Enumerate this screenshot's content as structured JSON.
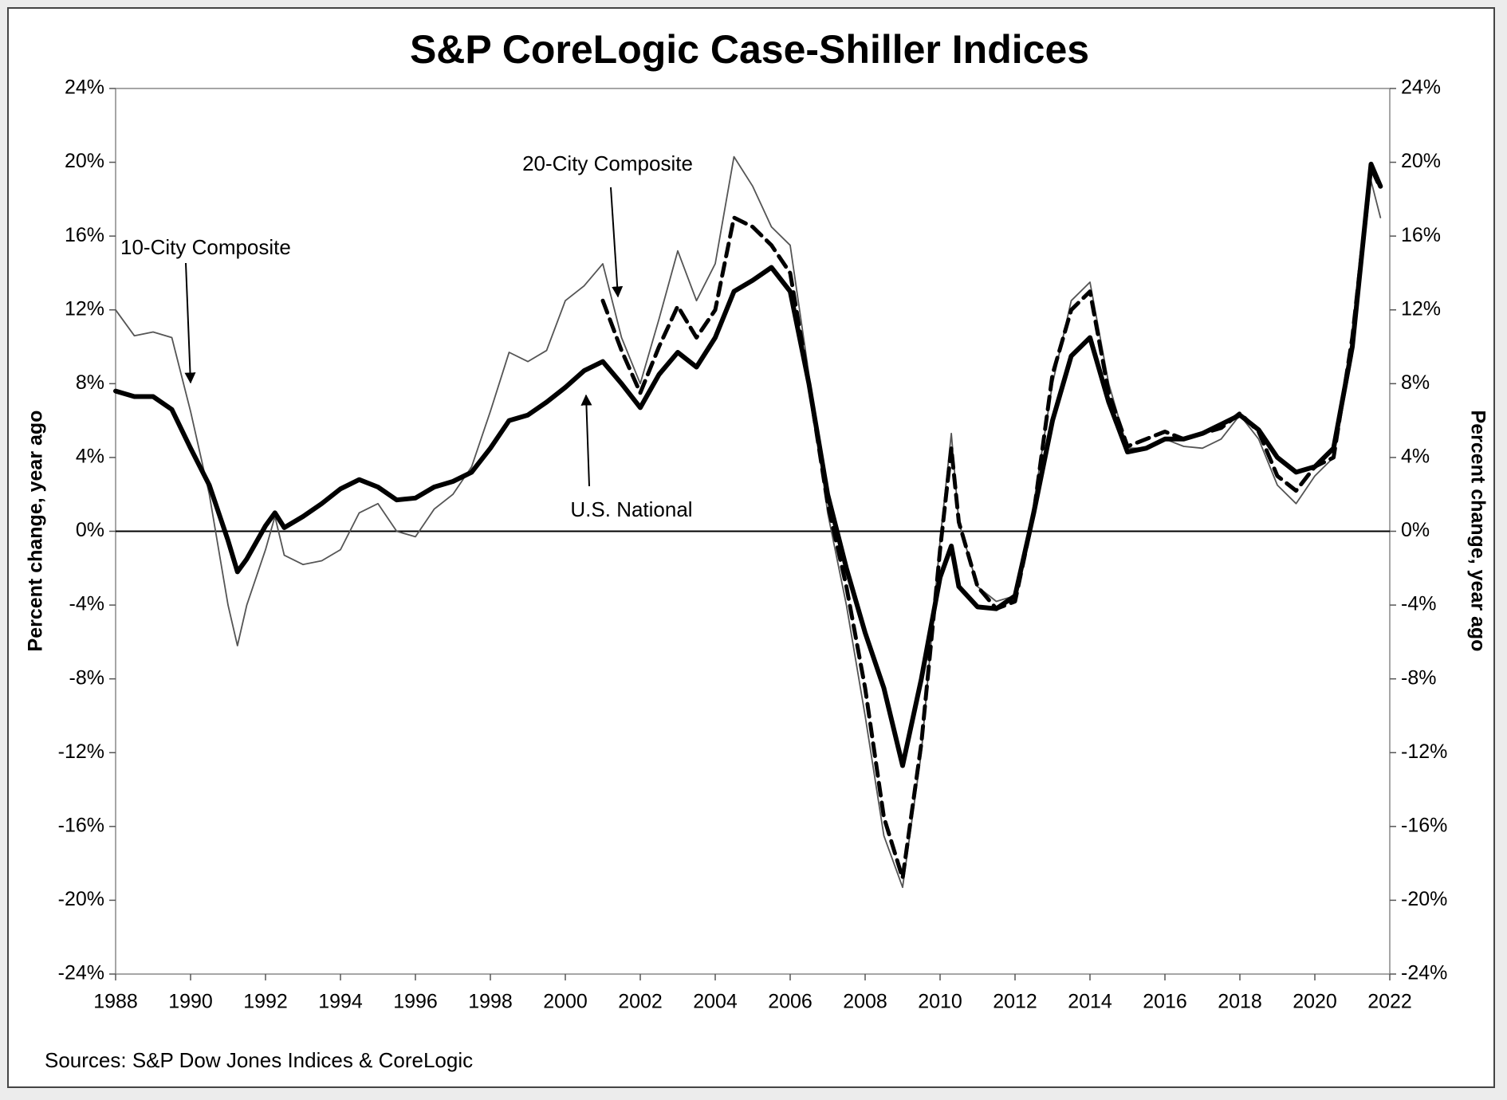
{
  "chart_data": {
    "type": "line",
    "title": "S&P CoreLogic Case-Shiller Indices",
    "y_label": "Percent change, year ago",
    "y2_label": "Percent change, year ago",
    "source": "Sources: S&P Dow Jones Indices & CoreLogic",
    "x": [
      1988,
      1988.5,
      1989,
      1989.5,
      1990,
      1990.5,
      1991,
      1991.25,
      1991.5,
      1992,
      1992.25,
      1992.5,
      1993,
      1993.5,
      1994,
      1994.5,
      1995,
      1995.5,
      1996,
      1996.5,
      1997,
      1997.5,
      1998,
      1998.5,
      1999,
      1999.5,
      2000,
      2000.5,
      2001,
      2001.5,
      2002,
      2002.5,
      2003,
      2003.5,
      2004,
      2004.5,
      2005,
      2005.5,
      2006,
      2006.5,
      2007,
      2007.5,
      2008,
      2008.5,
      2009,
      2009.5,
      2010,
      2010.3,
      2010.5,
      2011,
      2011.5,
      2012,
      2012.5,
      2013,
      2013.5,
      2014,
      2014.5,
      2015,
      2015.5,
      2016,
      2016.5,
      2017,
      2017.5,
      2018,
      2018.5,
      2019,
      2019.5,
      2020,
      2020.5,
      2021,
      2021.5,
      2021.75
    ],
    "series": [
      {
        "name": "10-City Composite",
        "color": "#555555",
        "values": [
          12.0,
          10.6,
          10.8,
          10.5,
          6.5,
          2.0,
          -4.0,
          -6.2,
          -4.0,
          -1.0,
          0.8,
          -1.3,
          -1.8,
          -1.6,
          -1.0,
          1.0,
          1.5,
          0.0,
          -0.3,
          1.2,
          2.0,
          3.5,
          6.5,
          9.7,
          9.2,
          9.8,
          12.5,
          13.3,
          14.5,
          10.5,
          8.0,
          11.5,
          15.2,
          12.5,
          14.5,
          20.3,
          18.7,
          16.5,
          15.5,
          8.5,
          1.0,
          -4.0,
          -10.0,
          -16.5,
          -19.3,
          -12.0,
          -0.5,
          5.3,
          0.5,
          -3.0,
          -3.8,
          -3.5,
          1.5,
          8.0,
          12.5,
          13.5,
          8.0,
          4.5,
          4.5,
          5.0,
          4.6,
          4.5,
          5.0,
          6.3,
          5.0,
          2.5,
          1.5,
          3.0,
          4.0,
          9.5,
          19.0,
          17.0
        ]
      },
      {
        "name": "20-City Composite",
        "color": "#000000",
        "values": [
          null,
          null,
          null,
          null,
          null,
          null,
          null,
          null,
          null,
          null,
          null,
          null,
          null,
          null,
          null,
          null,
          null,
          null,
          null,
          null,
          null,
          null,
          null,
          null,
          null,
          null,
          null,
          null,
          12.5,
          9.8,
          7.5,
          10.0,
          12.2,
          10.5,
          12.0,
          17.0,
          16.5,
          15.5,
          14.0,
          8.0,
          1.5,
          -3.0,
          -8.5,
          -15.5,
          -18.8,
          -11.5,
          -1.0,
          4.5,
          0.5,
          -3.0,
          -4.2,
          -3.8,
          1.0,
          8.5,
          12.0,
          13.0,
          7.5,
          4.6,
          5.0,
          5.4,
          5.0,
          5.3,
          5.6,
          6.4,
          5.4,
          3.0,
          2.2,
          3.5,
          4.0,
          10.5,
          19.7,
          18.6
        ]
      },
      {
        "name": "U.S. National",
        "color": "#000000",
        "values": [
          7.6,
          7.3,
          7.3,
          6.6,
          4.5,
          2.5,
          -0.5,
          -2.2,
          -1.5,
          0.3,
          1.0,
          0.2,
          0.8,
          1.5,
          2.3,
          2.8,
          2.4,
          1.7,
          1.8,
          2.4,
          2.7,
          3.2,
          4.5,
          6.0,
          6.3,
          7.0,
          7.8,
          8.7,
          9.2,
          8.0,
          6.7,
          8.5,
          9.7,
          8.9,
          10.5,
          13.0,
          13.6,
          14.3,
          13.0,
          8.0,
          2.0,
          -2.0,
          -5.5,
          -8.5,
          -12.7,
          -8.0,
          -2.5,
          -0.8,
          -3.0,
          -4.1,
          -4.2,
          -3.5,
          1.0,
          6.0,
          9.5,
          10.5,
          7.0,
          4.3,
          4.5,
          5.0,
          5.0,
          5.3,
          5.8,
          6.3,
          5.5,
          4.0,
          3.2,
          3.5,
          4.5,
          10.0,
          19.9,
          18.7
        ]
      }
    ],
    "xlim": [
      1988,
      2022
    ],
    "xticks": [
      1988,
      1990,
      1992,
      1994,
      1996,
      1998,
      2000,
      2002,
      2004,
      2006,
      2008,
      2010,
      2012,
      2014,
      2016,
      2018,
      2020,
      2022
    ],
    "ylim": [
      -24,
      24
    ],
    "yticks": [
      {
        "value": 24,
        "label": "24%"
      },
      {
        "value": 20,
        "label": "20%"
      },
      {
        "value": 16,
        "label": "16%"
      },
      {
        "value": 12,
        "label": "12%"
      },
      {
        "value": 8,
        "label": "8%"
      },
      {
        "value": 4,
        "label": "4%"
      },
      {
        "value": 0,
        "label": "0%"
      },
      {
        "value": -4,
        "label": "-4%"
      },
      {
        "value": -8,
        "label": "-8%"
      },
      {
        "value": -12,
        "label": "-12%"
      },
      {
        "value": -16,
        "label": "-16%"
      },
      {
        "value": -20,
        "label": "-20%"
      },
      {
        "value": -24,
        "label": "-24%"
      }
    ],
    "y2lim": [
      -24,
      24
    ],
    "y2ticks": [
      {
        "value": 24,
        "label": "24%"
      },
      {
        "value": 20,
        "label": "20%"
      },
      {
        "value": 16,
        "label": "16%"
      },
      {
        "value": 12,
        "label": "12%"
      },
      {
        "value": 8,
        "label": "8%"
      },
      {
        "value": 4,
        "label": "4%"
      },
      {
        "value": 0,
        "label": "0%"
      },
      {
        "value": -4,
        "label": "-4%"
      },
      {
        "value": -8,
        "label": "-8%"
      },
      {
        "value": -12,
        "label": "-12%"
      },
      {
        "value": -16,
        "label": "-16%"
      },
      {
        "value": -20,
        "label": "-20%"
      },
      {
        "value": -24,
        "label": "-24%"
      }
    ],
    "grid": false
  }
}
